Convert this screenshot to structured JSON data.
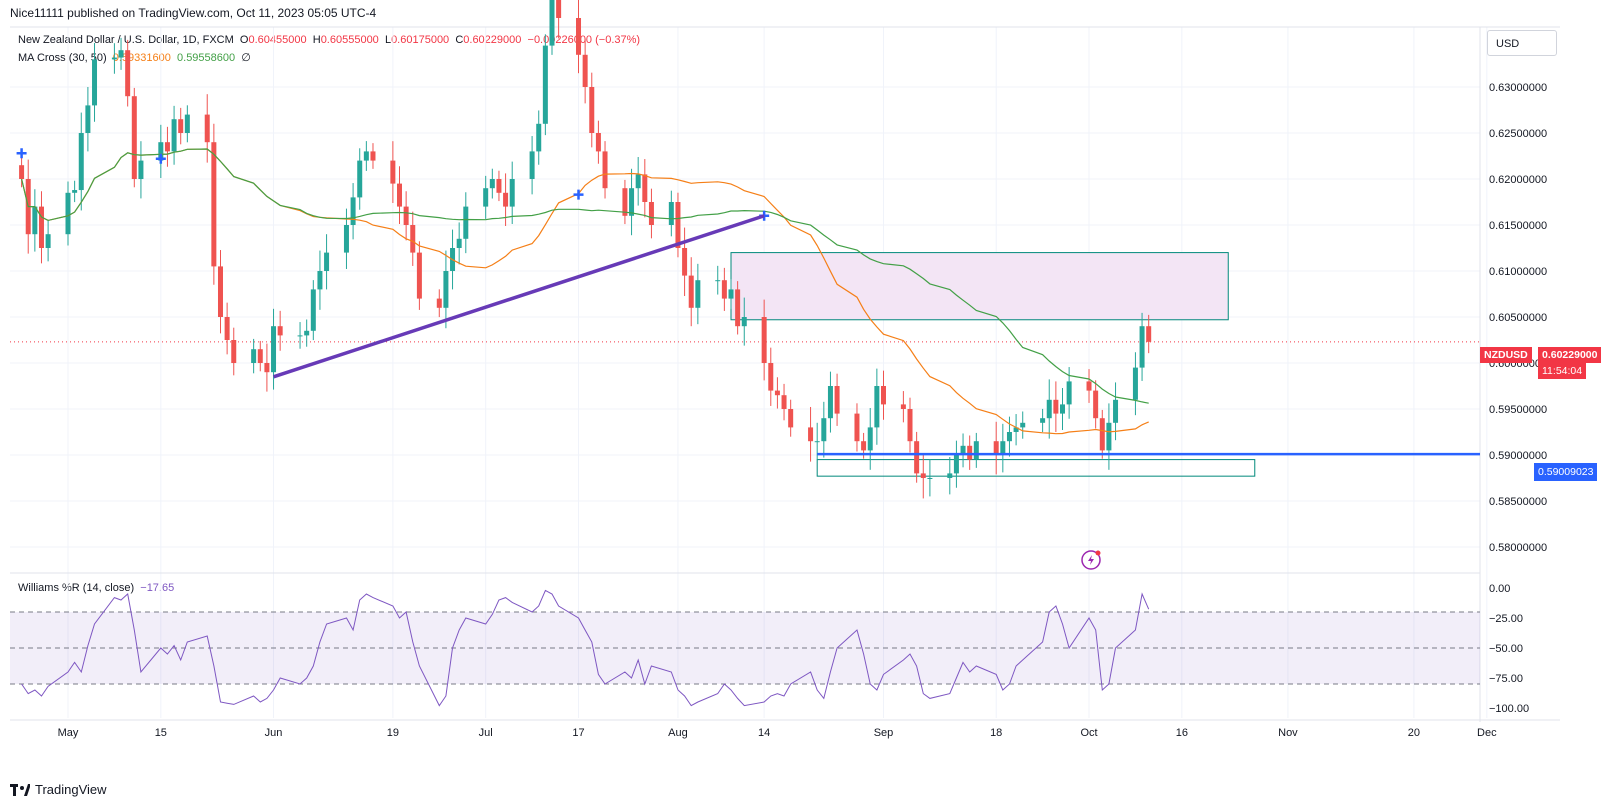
{
  "header": {
    "published": "Nice11111 published on TradingView.com, Oct 11, 2023 05:05 UTC-4"
  },
  "legend": {
    "symbol_title": "New Zealand Dollar / U.S. Dollar, 1D, FXCM",
    "o_label": "O",
    "o_value": "0.60455000",
    "h_label": "H",
    "h_value": "0.60555000",
    "l_label": "L",
    "l_value": "0.60175000",
    "c_label": "C",
    "c_value": "0.60229000",
    "change": "−0.00226000 (−0.37%)",
    "ma_title": "MA Cross (30, 50)",
    "ma_fast_value": "0.59331600",
    "ma_slow_value": "0.59558600",
    "ma_extra": "∅",
    "wr_title": "Williams %R (14, close)",
    "wr_value": "−17.65"
  },
  "price_axis": {
    "currency_button": "USD",
    "ticks": [
      "0.63000000",
      "0.62500000",
      "0.62000000",
      "0.61500000",
      "0.61000000",
      "0.60500000",
      "0.60000000",
      "0.59500000",
      "0.59000000",
      "0.58500000",
      "0.58000000"
    ],
    "symbol_tag": "NZDUSD",
    "last_price": "0.60229000",
    "countdown": "11:54:04",
    "hline_price": "0.59009023"
  },
  "wr_axis": {
    "ticks": [
      "0.00",
      "−25.00",
      "−50.00",
      "−75.00",
      "−100.00"
    ]
  },
  "time_axis": {
    "labels": [
      "May",
      "15",
      "Jun",
      "19",
      "Jul",
      "17",
      "Aug",
      "14",
      "Sep",
      "18",
      "Oct",
      "16",
      "Nov",
      "20",
      "Dec"
    ]
  },
  "footer": {
    "brand": "TradingView"
  },
  "colors": {
    "up": "#26a69a",
    "down": "#ef5350",
    "ma_fast": "#f57f17",
    "ma_slow": "#43a047",
    "trendline": "#673ab7",
    "hline": "#2962ff",
    "wr": "#7e57c2",
    "zone_fill": "#f3e5f5",
    "zone_border": "#00897b"
  },
  "chart_data": {
    "type": "candlestick",
    "symbol": "NZDUSD",
    "interval": "1D",
    "dates": [
      "2023-04-24",
      "2023-04-25",
      "2023-04-26",
      "2023-04-27",
      "2023-04-28",
      "2023-05-01",
      "2023-05-02",
      "2023-05-03",
      "2023-05-04",
      "2023-05-05",
      "2023-05-08",
      "2023-05-09",
      "2023-05-10",
      "2023-05-11",
      "2023-05-12",
      "2023-05-15",
      "2023-05-16",
      "2023-05-17",
      "2023-05-18",
      "2023-05-19",
      "2023-05-22",
      "2023-05-23",
      "2023-05-24",
      "2023-05-25",
      "2023-05-26",
      "2023-05-29",
      "2023-05-30",
      "2023-05-31",
      "2023-06-01",
      "2023-06-02",
      "2023-06-05",
      "2023-06-06",
      "2023-06-07",
      "2023-06-08",
      "2023-06-09",
      "2023-06-12",
      "2023-06-13",
      "2023-06-14",
      "2023-06-15",
      "2023-06-16",
      "2023-06-19",
      "2023-06-20",
      "2023-06-21",
      "2023-06-22",
      "2023-06-23",
      "2023-06-26",
      "2023-06-27",
      "2023-06-28",
      "2023-06-29",
      "2023-06-30",
      "2023-07-03",
      "2023-07-04",
      "2023-07-05",
      "2023-07-06",
      "2023-07-07",
      "2023-07-10",
      "2023-07-11",
      "2023-07-12",
      "2023-07-13",
      "2023-07-14",
      "2023-07-17",
      "2023-07-18",
      "2023-07-19",
      "2023-07-20",
      "2023-07-21",
      "2023-07-24",
      "2023-07-25",
      "2023-07-26",
      "2023-07-27",
      "2023-07-28",
      "2023-07-31",
      "2023-08-01",
      "2023-08-02",
      "2023-08-03",
      "2023-08-04",
      "2023-08-07",
      "2023-08-08",
      "2023-08-09",
      "2023-08-10",
      "2023-08-11",
      "2023-08-14",
      "2023-08-15",
      "2023-08-16",
      "2023-08-17",
      "2023-08-18",
      "2023-08-21",
      "2023-08-22",
      "2023-08-23",
      "2023-08-24",
      "2023-08-25",
      "2023-08-28",
      "2023-08-29",
      "2023-08-30",
      "2023-08-31",
      "2023-09-01",
      "2023-09-04",
      "2023-09-05",
      "2023-09-06",
      "2023-09-07",
      "2023-09-08",
      "2023-09-11",
      "2023-09-12",
      "2023-09-13",
      "2023-09-14",
      "2023-09-15",
      "2023-09-18",
      "2023-09-19",
      "2023-09-20",
      "2023-09-21",
      "2023-09-22",
      "2023-09-25",
      "2023-09-26",
      "2023-09-27",
      "2023-09-28",
      "2023-09-29",
      "2023-10-02",
      "2023-10-03",
      "2023-10-04",
      "2023-10-05",
      "2023-10-06",
      "2023-10-09",
      "2023-10-10",
      "2023-10-11"
    ],
    "close": [
      0.62,
      0.614,
      0.617,
      0.6125,
      0.614,
      0.6185,
      0.6188,
      0.625,
      0.628,
      0.633,
      0.6332,
      0.634,
      0.629,
      0.62,
      0.622,
      0.624,
      0.623,
      0.6265,
      0.625,
      0.627,
      0.624,
      0.6105,
      0.605,
      0.6025,
      0.6,
      0.6015,
      0.6,
      0.599,
      0.604,
      0.603,
      0.603,
      0.6035,
      0.608,
      0.61,
      0.612,
      0.615,
      0.618,
      0.622,
      0.623,
      0.622,
      0.6195,
      0.617,
      0.615,
      0.612,
      0.607,
      0.606,
      0.61,
      0.6125,
      0.6135,
      0.617,
      0.619,
      0.62,
      0.6185,
      0.617,
      0.62,
      0.623,
      0.626,
      0.6345,
      0.6405,
      0.6375,
      0.6335,
      0.63,
      0.625,
      0.623,
      0.619,
      0.616,
      0.619,
      0.6205,
      0.6175,
      0.615,
      0.6175,
      0.6125,
      0.6095,
      0.606,
      0.609,
      0.609,
      0.607,
      0.608,
      0.604,
      0.605,
      0.6,
      0.597,
      0.5965,
      0.595,
      0.593,
      0.5915,
      0.5915,
      0.594,
      0.5975,
      0.5945,
      0.5915,
      0.5905,
      0.593,
      0.5975,
      0.5955,
      0.595,
      0.5915,
      0.588,
      0.5875,
      0.5875,
      0.588,
      0.59,
      0.591,
      0.5895,
      0.5915,
      0.59,
      0.5915,
      0.5925,
      0.593,
      0.5935,
      0.594,
      0.596,
      0.5945,
      0.5955,
      0.598,
      0.597,
      0.594,
      0.5905,
      0.5935,
      0.596,
      0.5995,
      0.604,
      0.6023
    ],
    "ma_fast_last": 0.593316,
    "ma_slow_last": 0.595586,
    "williams_r": [
      -80,
      -88,
      -85,
      -90,
      -82,
      -70,
      -62,
      -70,
      -48,
      -30,
      -8,
      -10,
      -5,
      -35,
      -70,
      -50,
      -55,
      -48,
      -60,
      -45,
      -40,
      -65,
      -95,
      -96,
      -97,
      -90,
      -95,
      -92,
      -85,
      -75,
      -80,
      -75,
      -65,
      -45,
      -30,
      -25,
      -35,
      -10,
      -5,
      -8,
      -15,
      -25,
      -20,
      -45,
      -65,
      -98,
      -90,
      -50,
      -35,
      -25,
      -30,
      -22,
      -10,
      -8,
      -12,
      -20,
      -15,
      -2,
      -5,
      -15,
      -25,
      -35,
      -45,
      -72,
      -80,
      -70,
      -75,
      -60,
      -80,
      -65,
      -70,
      -85,
      -90,
      -98,
      -95,
      -88,
      -80,
      -85,
      -92,
      -98,
      -95,
      -90,
      -88,
      -90,
      -80,
      -70,
      -85,
      -92,
      -70,
      -50,
      -35,
      -55,
      -80,
      -85,
      -72,
      -60,
      -55,
      -65,
      -88,
      -92,
      -88,
      -75,
      -62,
      -70,
      -65,
      -72,
      -85,
      -80,
      -65,
      -60,
      -45,
      -20,
      -15,
      -30,
      -50,
      -25,
      -35,
      -85,
      -80,
      -50,
      -35,
      -5,
      -17.65
    ],
    "trendline": {
      "from_date": "2023-06-01",
      "from_price": 0.5985,
      "to_date": "2023-08-14",
      "to_price": 0.616
    },
    "zones": [
      {
        "from_date": "2023-08-09",
        "to_date": "2023-10-23",
        "top": 0.612,
        "bottom": 0.6047
      },
      {
        "from_date": "2023-08-22",
        "to_date": "2023-10-27",
        "top": 0.5895,
        "bottom": 0.5877
      }
    ],
    "hline": 0.59009023
  }
}
